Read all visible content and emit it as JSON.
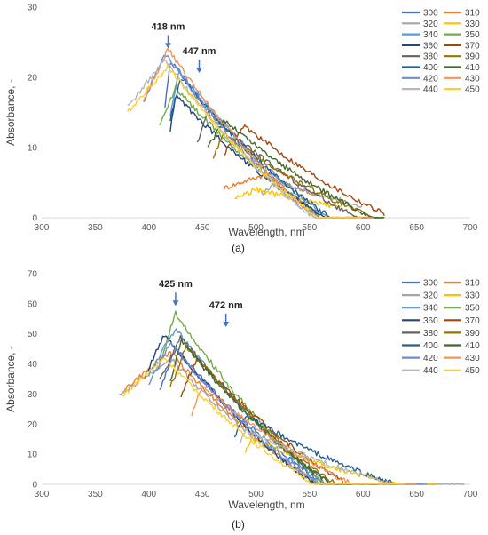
{
  "chart_data": [
    {
      "type": "line",
      "panel_label": "(a)",
      "xlabel": "Wavelength, nm",
      "ylabel": "Absorbance, -",
      "xlim": [
        300,
        700
      ],
      "ylim": [
        0,
        30
      ],
      "xticks": [
        300,
        350,
        400,
        450,
        500,
        550,
        600,
        650,
        700
      ],
      "yticks": [
        0,
        10,
        20,
        30
      ],
      "grid": false,
      "legend_position": "top-right",
      "annotations": [
        {
          "label": "418 nm",
          "x": 418,
          "y": 24
        },
        {
          "label": "447 nm",
          "x": 447,
          "y": 20.5
        }
      ],
      "series": [
        {
          "name": "300",
          "color": "#4472C4",
          "start": 415,
          "end": 600,
          "peak": 22.5,
          "peakx": 420
        },
        {
          "name": "310",
          "color": "#ED7D31",
          "start": 470,
          "end": 560,
          "peak": 6.0,
          "peakx": 505
        },
        {
          "name": "320",
          "color": "#A5A5A5",
          "start": 505,
          "end": 600,
          "peak": 5.0,
          "peakx": 520
        },
        {
          "name": "330",
          "color": "#FFC000",
          "start": 480,
          "end": 580,
          "peak": 4.0,
          "peakx": 500
        },
        {
          "name": "340",
          "color": "#5B9BD5",
          "start": 420,
          "end": 610,
          "peak": 21.0,
          "peakx": 428
        },
        {
          "name": "350",
          "color": "#70AD47",
          "start": 410,
          "end": 610,
          "peak": 18.5,
          "peakx": 425
        },
        {
          "name": "360",
          "color": "#264478",
          "start": 420,
          "end": 600,
          "peak": 17.5,
          "peakx": 425
        },
        {
          "name": "370",
          "color": "#9E480E",
          "start": 470,
          "end": 620,
          "peak": 13.0,
          "peakx": 490
        },
        {
          "name": "380",
          "color": "#636363",
          "start": 445,
          "end": 615,
          "peak": 15.0,
          "peakx": 455
        },
        {
          "name": "390",
          "color": "#997300",
          "start": 460,
          "end": 620,
          "peak": 12.0,
          "peakx": 470
        },
        {
          "name": "400",
          "color": "#255E91",
          "start": 420,
          "end": 605,
          "peak": 20.0,
          "peakx": 430
        },
        {
          "name": "410",
          "color": "#43682B",
          "start": 455,
          "end": 620,
          "peak": 14.0,
          "peakx": 470
        },
        {
          "name": "420",
          "color": "#698ED0",
          "start": 395,
          "end": 605,
          "peak": 23.5,
          "peakx": 415
        },
        {
          "name": "430",
          "color": "#F1975A",
          "start": 395,
          "end": 610,
          "peak": 24.0,
          "peakx": 418
        },
        {
          "name": "440",
          "color": "#B7B7B7",
          "start": 380,
          "end": 600,
          "peak": 22.5,
          "peakx": 415
        },
        {
          "name": "450",
          "color": "#FFCD33",
          "start": 380,
          "end": 600,
          "peak": 21.5,
          "peakx": 418
        }
      ]
    },
    {
      "type": "line",
      "panel_label": "(b)",
      "xlabel": "Wavelength, nm",
      "ylabel": "Absorbance, -",
      "xlim": [
        300,
        700
      ],
      "ylim": [
        0,
        70
      ],
      "xticks": [
        300,
        350,
        400,
        450,
        500,
        550,
        600,
        650,
        700
      ],
      "yticks": [
        0,
        10,
        20,
        30,
        40,
        50,
        60,
        70
      ],
      "grid": false,
      "legend_position": "top-right",
      "annotations": [
        {
          "label": "425 nm",
          "x": 425,
          "y": 59
        },
        {
          "label": "472 nm",
          "x": 472,
          "y": 52
        }
      ],
      "series": [
        {
          "name": "300",
          "color": "#4472C4",
          "start": 410,
          "end": 670,
          "peak": 45.0,
          "peakx": 425
        },
        {
          "name": "310",
          "color": "#ED7D31",
          "start": 375,
          "end": 650,
          "peak": 44.0,
          "peakx": 420
        },
        {
          "name": "320",
          "color": "#A5A5A5",
          "start": 372,
          "end": 695,
          "peak": 42.0,
          "peakx": 420
        },
        {
          "name": "330",
          "color": "#FFC000",
          "start": 490,
          "end": 670,
          "peak": 15.0,
          "peakx": 495
        },
        {
          "name": "340",
          "color": "#5B9BD5",
          "start": 400,
          "end": 660,
          "peak": 52.0,
          "peakx": 425
        },
        {
          "name": "350",
          "color": "#70AD47",
          "start": 410,
          "end": 630,
          "peak": 57.0,
          "peakx": 425
        },
        {
          "name": "360",
          "color": "#264478",
          "start": 395,
          "end": 620,
          "peak": 50.0,
          "peakx": 415
        },
        {
          "name": "370",
          "color": "#9E480E",
          "start": 430,
          "end": 640,
          "peak": 42.0,
          "peakx": 445
        },
        {
          "name": "380",
          "color": "#636363",
          "start": 410,
          "end": 640,
          "peak": 49.0,
          "peakx": 430
        },
        {
          "name": "390",
          "color": "#997300",
          "start": 420,
          "end": 640,
          "peak": 46.0,
          "peakx": 435
        },
        {
          "name": "400",
          "color": "#255E91",
          "start": 480,
          "end": 640,
          "peak": 23.0,
          "peakx": 490
        },
        {
          "name": "410",
          "color": "#43682B",
          "start": 420,
          "end": 640,
          "peak": 48.0,
          "peakx": 430
        },
        {
          "name": "420",
          "color": "#698ED0",
          "start": 400,
          "end": 640,
          "peak": 47.0,
          "peakx": 420
        },
        {
          "name": "430",
          "color": "#F1975A",
          "start": 440,
          "end": 650,
          "peak": 33.0,
          "peakx": 450
        },
        {
          "name": "440",
          "color": "#B7B7B7",
          "start": 485,
          "end": 640,
          "peak": 18.0,
          "peakx": 490
        },
        {
          "name": "450",
          "color": "#FFCD33",
          "start": 375,
          "end": 640,
          "peak": 42.0,
          "peakx": 415
        }
      ]
    }
  ]
}
